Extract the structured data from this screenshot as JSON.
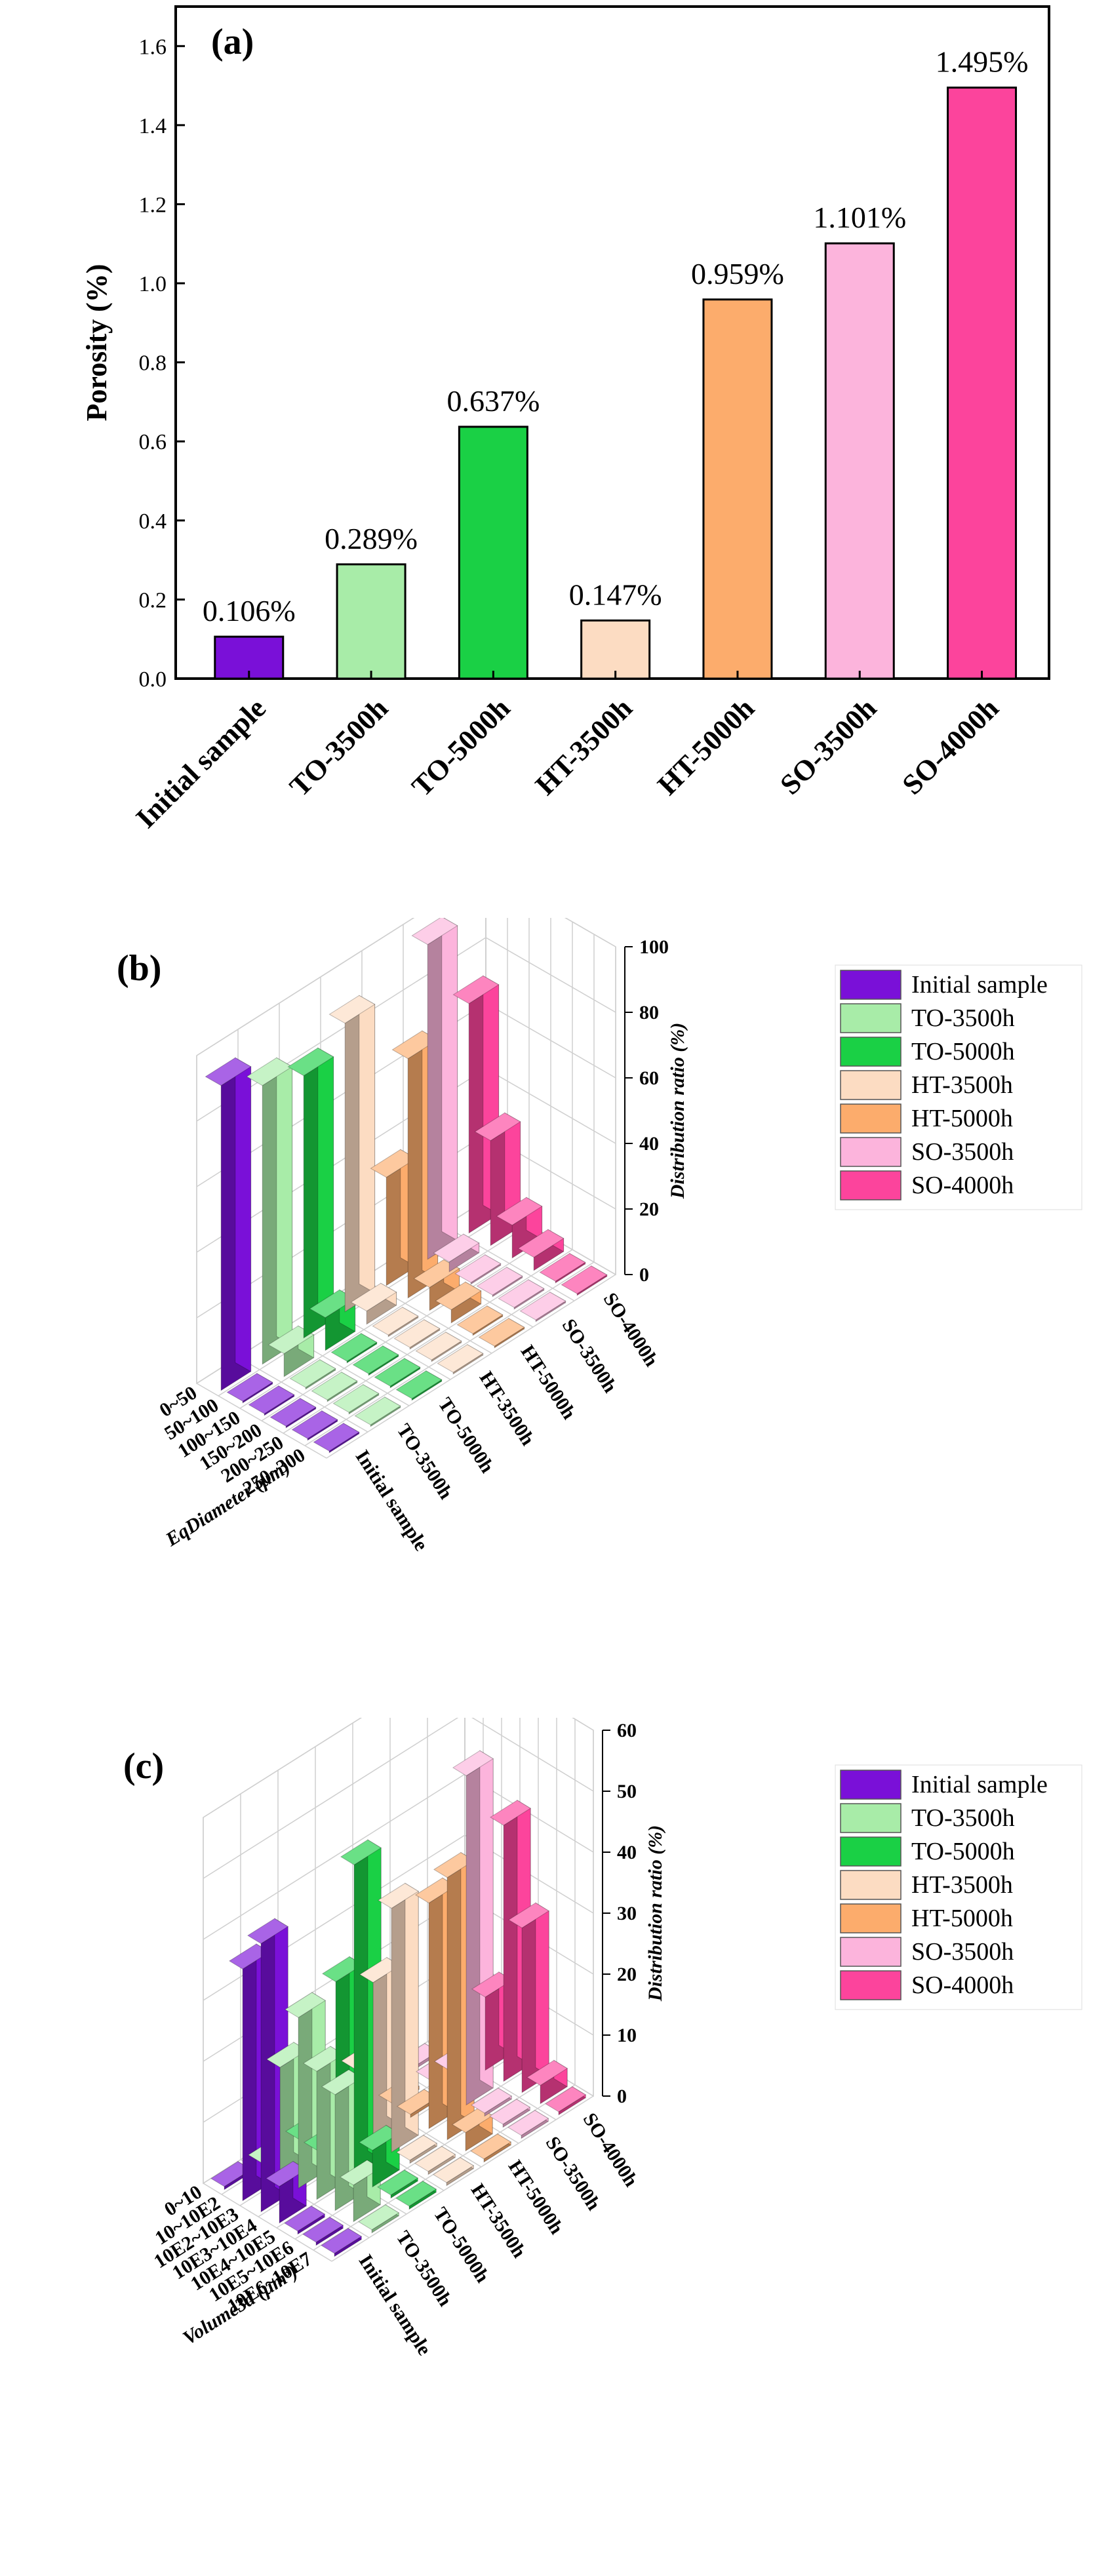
{
  "chart_data": [
    {
      "panel_label": "(a)",
      "type": "bar",
      "ylabel": "Porosity (%)",
      "xlabel": "",
      "ylim": [
        0,
        1.7
      ],
      "yticks": [
        "0.0",
        "0.2",
        "0.4",
        "0.6",
        "0.8",
        "1.0",
        "1.2",
        "1.4",
        "1.6"
      ],
      "categories": [
        "Initial sample",
        "TO-3500h",
        "TO-5000h",
        "HT-3500h",
        "HT-5000h",
        "SO-3500h",
        "SO-4000h"
      ],
      "values": [
        0.106,
        0.289,
        0.637,
        0.147,
        0.959,
        1.101,
        1.495
      ],
      "value_labels": [
        "0.106%",
        "0.289%",
        "0.637%",
        "0.147%",
        "0.959%",
        "1.101%",
        "1.495%"
      ],
      "colors": [
        "#7a10d8",
        "#a8eca8",
        "#1ad045",
        "#fcdcc2",
        "#fcac6c",
        "#fcb4dc",
        "#fc449c"
      ]
    },
    {
      "panel_label": "(b)",
      "type": "bar3d",
      "xlabel": "EqDiameter (μm)",
      "zlabel": "Distribution ratio (%)",
      "zlim": [
        0,
        100
      ],
      "zticks": [
        "0",
        "20",
        "40",
        "60",
        "80",
        "100"
      ],
      "categories": [
        "0~50",
        "50~100",
        "100~150",
        "150~200",
        "200~250",
        "250~300"
      ],
      "series": [
        {
          "name": "Initial sample",
          "values": [
            93,
            0.5,
            0.5,
            0.5,
            0.5,
            0.5
          ]
        },
        {
          "name": "TO-3500h",
          "values": [
            85,
            7,
            0.5,
            0.5,
            0.5,
            0.5
          ]
        },
        {
          "name": "TO-5000h",
          "values": [
            80,
            10,
            0.5,
            0.5,
            0.5,
            0.5
          ]
        },
        {
          "name": "HT-3500h",
          "values": [
            88,
            4,
            0.5,
            0.5,
            0.5,
            0.5
          ]
        },
        {
          "name": "HT-5000h",
          "values": [
            33,
            73,
            7,
            4,
            0.5,
            0.5
          ]
        },
        {
          "name": "SO-3500h",
          "values": [
            96,
            3,
            0.5,
            0.5,
            0.5,
            0.5
          ]
        },
        {
          "name": "SO-4000h",
          "values": [
            70,
            32,
            10,
            4,
            0.5,
            0.5
          ]
        }
      ],
      "legend": "right"
    },
    {
      "panel_label": "(c)",
      "type": "bar3d",
      "xlabel": "Volume3d (μm³)",
      "zlabel": "Distribution ratio (%)",
      "zlim": [
        0,
        60
      ],
      "zticks": [
        "0",
        "10",
        "20",
        "30",
        "40",
        "50",
        "60"
      ],
      "categories": [
        "0~10",
        "10~10E2",
        "10E2~10E3",
        "10E3~10E4",
        "10E4~10E5",
        "10E5~10E6",
        "10E6~10E7"
      ],
      "series": [
        {
          "name": "Initial sample",
          "values": [
            0.5,
            38,
            44,
            6,
            0.5,
            0.5,
            0.5
          ]
        },
        {
          "name": "TO-3500h",
          "values": [
            0.5,
            18,
            28,
            21,
            19,
            6,
            0.5
          ]
        },
        {
          "name": "TO-5000h",
          "values": [
            0.5,
            0.5,
            30,
            51,
            6,
            0.5,
            0.5
          ]
        },
        {
          "name": "HT-3500h",
          "values": [
            0.5,
            10,
            26,
            40,
            0.5,
            0.5,
            0.5
          ]
        },
        {
          "name": "HT-5000h",
          "values": [
            0.5,
            0.5,
            0.5,
            37,
            43,
            3,
            0.5
          ]
        },
        {
          "name": "SO-3500h",
          "values": [
            0.5,
            0.5,
            4,
            54,
            0.5,
            0.5,
            0.5
          ]
        },
        {
          "name": "SO-4000h",
          "values": [
            0.5,
            0.5,
            12,
            42,
            27,
            3,
            0.5
          ]
        }
      ],
      "legend": "right"
    }
  ]
}
